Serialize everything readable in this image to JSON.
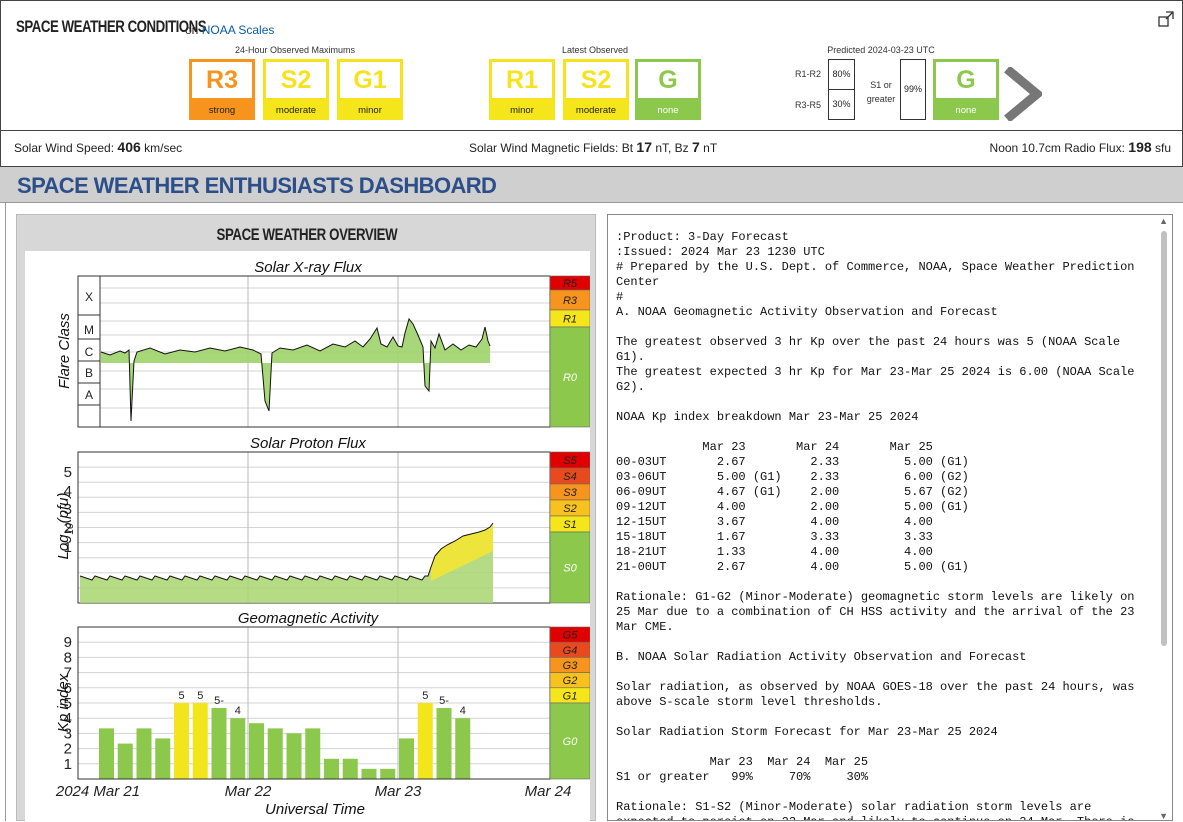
{
  "header": {
    "title": "SPACE WEATHER CONDITIONS",
    "on_text": "on",
    "noaa_link": "NOAA Scales",
    "group_observed_max": "24-Hour Observed Maximums",
    "group_latest": "Latest Observed",
    "group_predicted": "Predicted 2024-03-23 UTC"
  },
  "scales_max": [
    {
      "code": "R3",
      "label": "strong",
      "color": "#f7941d"
    },
    {
      "code": "S2",
      "label": "moderate",
      "color": "#f7e31d"
    },
    {
      "code": "G1",
      "label": "minor",
      "color": "#f7e31d"
    }
  ],
  "scales_latest": [
    {
      "code": "R1",
      "label": "minor",
      "color": "#f7e31d"
    },
    {
      "code": "S2",
      "label": "moderate",
      "color": "#f7e31d"
    },
    {
      "code": "G",
      "label": "none",
      "color": "#8cc84b"
    }
  ],
  "predicted": {
    "r12_label": "R1-R2",
    "r12_value": "80%",
    "r35_label": "R3-R5",
    "r35_value": "30%",
    "s1_label_line1": "S1 or",
    "s1_label_line2": "greater",
    "s1_value": "99%",
    "g_code": "G",
    "g_label": "none"
  },
  "solar_bar": {
    "wind_label": "Solar Wind Speed:",
    "wind_value": "406",
    "wind_unit": "km/sec",
    "mag_label": "Solar Wind Magnetic Fields: Bt",
    "bt_value": "17",
    "bt_unit": "nT, Bz",
    "bz_value": "7",
    "bz_unit": "nT",
    "flux_label": "Noon 10.7cm Radio Flux:",
    "flux_value": "198",
    "flux_unit": "sfu"
  },
  "dashboard_title": "SPACE WEATHER ENTHUSIASTS DASHBOARD",
  "overview": {
    "title": "SPACE WEATHER OVERVIEW",
    "xray_title": "Solar X-ray Flux",
    "xray_ylabel": "Flare Class",
    "xray_classes": [
      "X",
      "M",
      "C",
      "B",
      "A"
    ],
    "xray_scale": [
      {
        "t": "R5",
        "c": "#e00000"
      },
      {
        "t": "R3",
        "c": "#f7941d"
      },
      {
        "t": "R1",
        "c": "#f5e61c"
      },
      {
        "t": "R0",
        "c": "#8cc84b"
      }
    ],
    "proton_title": "Solar Proton Flux",
    "proton_ylabel_a": "Log",
    "proton_ylabel_sub": "10",
    "proton_ylabel_b": "(pfu)",
    "proton_ticks": [
      "5",
      "4",
      "3",
      "2",
      "1"
    ],
    "proton_scale": [
      {
        "t": "S5",
        "c": "#e00000"
      },
      {
        "t": "S4",
        "c": "#e84a1e"
      },
      {
        "t": "S3",
        "c": "#f7941d"
      },
      {
        "t": "S2",
        "c": "#f7c21d"
      },
      {
        "t": "S1",
        "c": "#f5e61c"
      },
      {
        "t": "S0",
        "c": "#8cc84b"
      }
    ],
    "geo_title": "Geomagnetic Activity",
    "geo_ylabel": "Kp index",
    "geo_ticks": [
      "9",
      "8",
      "7",
      "6",
      "5",
      "4",
      "3",
      "2",
      "1"
    ],
    "geo_scale": [
      {
        "t": "G5",
        "c": "#e00000"
      },
      {
        "t": "G4",
        "c": "#e84a1e"
      },
      {
        "t": "G3",
        "c": "#f7941d"
      },
      {
        "t": "G2",
        "c": "#f7c21d"
      },
      {
        "t": "G1",
        "c": "#f5e61c"
      },
      {
        "t": "G0",
        "c": "#8cc84b"
      }
    ],
    "x_ticks": [
      "2024 Mar 21",
      "Mar 22",
      "Mar 23",
      "Mar 24"
    ],
    "x_label": "Universal Time"
  },
  "chart_data": {
    "type": "bar",
    "title": "Geomagnetic Activity",
    "xlabel": "Universal Time",
    "ylabel": "Kp index",
    "ylim": [
      0,
      9
    ],
    "x_ticks": [
      "2024 Mar 21",
      "Mar 22",
      "Mar 23",
      "Mar 24"
    ],
    "values": [
      3.33,
      2.33,
      3.33,
      2.67,
      5,
      5,
      4.67,
      4,
      3.67,
      3.33,
      3,
      3.33,
      1.33,
      1.33,
      0.67,
      0.67,
      2.67,
      5,
      4.67,
      4
    ],
    "labels": [
      "",
      "",
      "",
      "",
      "5",
      "5",
      "5-",
      "4",
      "",
      "",
      "",
      "",
      "",
      "",
      "",
      "",
      "",
      "5",
      "5-",
      "4"
    ]
  },
  "forecast_text": ":Product: 3-Day Forecast\n:Issued: 2024 Mar 23 1230 UTC\n# Prepared by the U.S. Dept. of Commerce, NOAA, Space Weather Prediction\nCenter\n#\nA. NOAA Geomagnetic Activity Observation and Forecast\n\nThe greatest observed 3 hr Kp over the past 24 hours was 5 (NOAA Scale\nG1).\nThe greatest expected 3 hr Kp for Mar 23-Mar 25 2024 is 6.00 (NOAA Scale\nG2).\n\nNOAA Kp index breakdown Mar 23-Mar 25 2024\n\n            Mar 23       Mar 24       Mar 25\n00-03UT       2.67         2.33         5.00 (G1)\n03-06UT       5.00 (G1)    2.33         6.00 (G2)\n06-09UT       4.67 (G1)    2.00         5.67 (G2)\n09-12UT       4.00         2.00         5.00 (G1)\n12-15UT       3.67         4.00         4.00\n15-18UT       1.67         3.33         3.33\n18-21UT       1.33         4.00         4.00\n21-00UT       2.67         4.00         5.00 (G1)\n\nRationale: G1-G2 (Minor-Moderate) geomagnetic storm levels are likely on\n25 Mar due to a combination of CH HSS activity and the arrival of the 23\nMar CME.\n\nB. NOAA Solar Radiation Activity Observation and Forecast\n\nSolar radiation, as observed by NOAA GOES-18 over the past 24 hours, was\nabove S-scale storm level thresholds.\n\nSolar Radiation Storm Forecast for Mar 23-Mar 25 2024\n\n             Mar 23  Mar 24  Mar 25\nS1 or greater   99%     70%     30%\n\nRationale: S1-S2 (Minor-Moderate) solar radiation storm levels are\nexpected to persist on 23 Mar and likely to continue on 24 Mar. There is"
}
